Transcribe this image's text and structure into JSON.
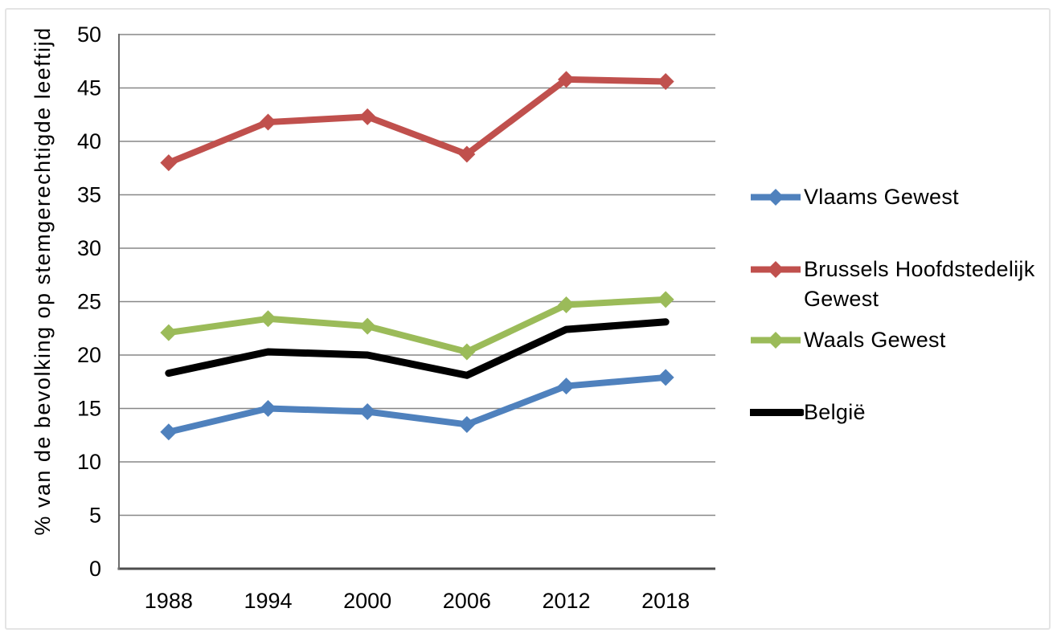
{
  "figure": {
    "background": "#ffffff",
    "frame_border_color": "#e4e4e4"
  },
  "chart_data": {
    "type": "line",
    "title": "",
    "xlabel": "",
    "ylabel": "% van de bevolking op stemgerechtigde leeftijd",
    "categories": [
      "1988",
      "1994",
      "2000",
      "2006",
      "2012",
      "2018"
    ],
    "series": [
      {
        "name": "Vlaams Gewest",
        "color": "#4F81BD",
        "marker": "diamond",
        "values": [
          12.8,
          15.0,
          14.7,
          13.5,
          17.1,
          17.9
        ]
      },
      {
        "name": "Brussels Hoofdstedelijk Gewest",
        "color": "#C0504D",
        "marker": "diamond",
        "values": [
          38.0,
          41.8,
          42.3,
          38.8,
          45.8,
          45.6
        ]
      },
      {
        "name": "Waals Gewest",
        "color": "#9BBB59",
        "marker": "diamond",
        "values": [
          22.1,
          23.4,
          22.7,
          20.3,
          24.7,
          25.2
        ]
      },
      {
        "name": "België",
        "color": "#000000",
        "marker": "none",
        "values": [
          18.3,
          20.3,
          20.0,
          18.1,
          22.4,
          23.1
        ]
      }
    ],
    "ylim": [
      0,
      50
    ],
    "ytick_step": 5,
    "ytick_labels": [
      "0",
      "5",
      "10",
      "15",
      "20",
      "25",
      "30",
      "35",
      "40",
      "45",
      "50"
    ],
    "grid": true,
    "legend_position": "right",
    "gridline_color": "#878787",
    "axis_line_color": "#6e6e6e",
    "baseline_color": "#4d4d4d",
    "tick_label_color": "#000000"
  }
}
